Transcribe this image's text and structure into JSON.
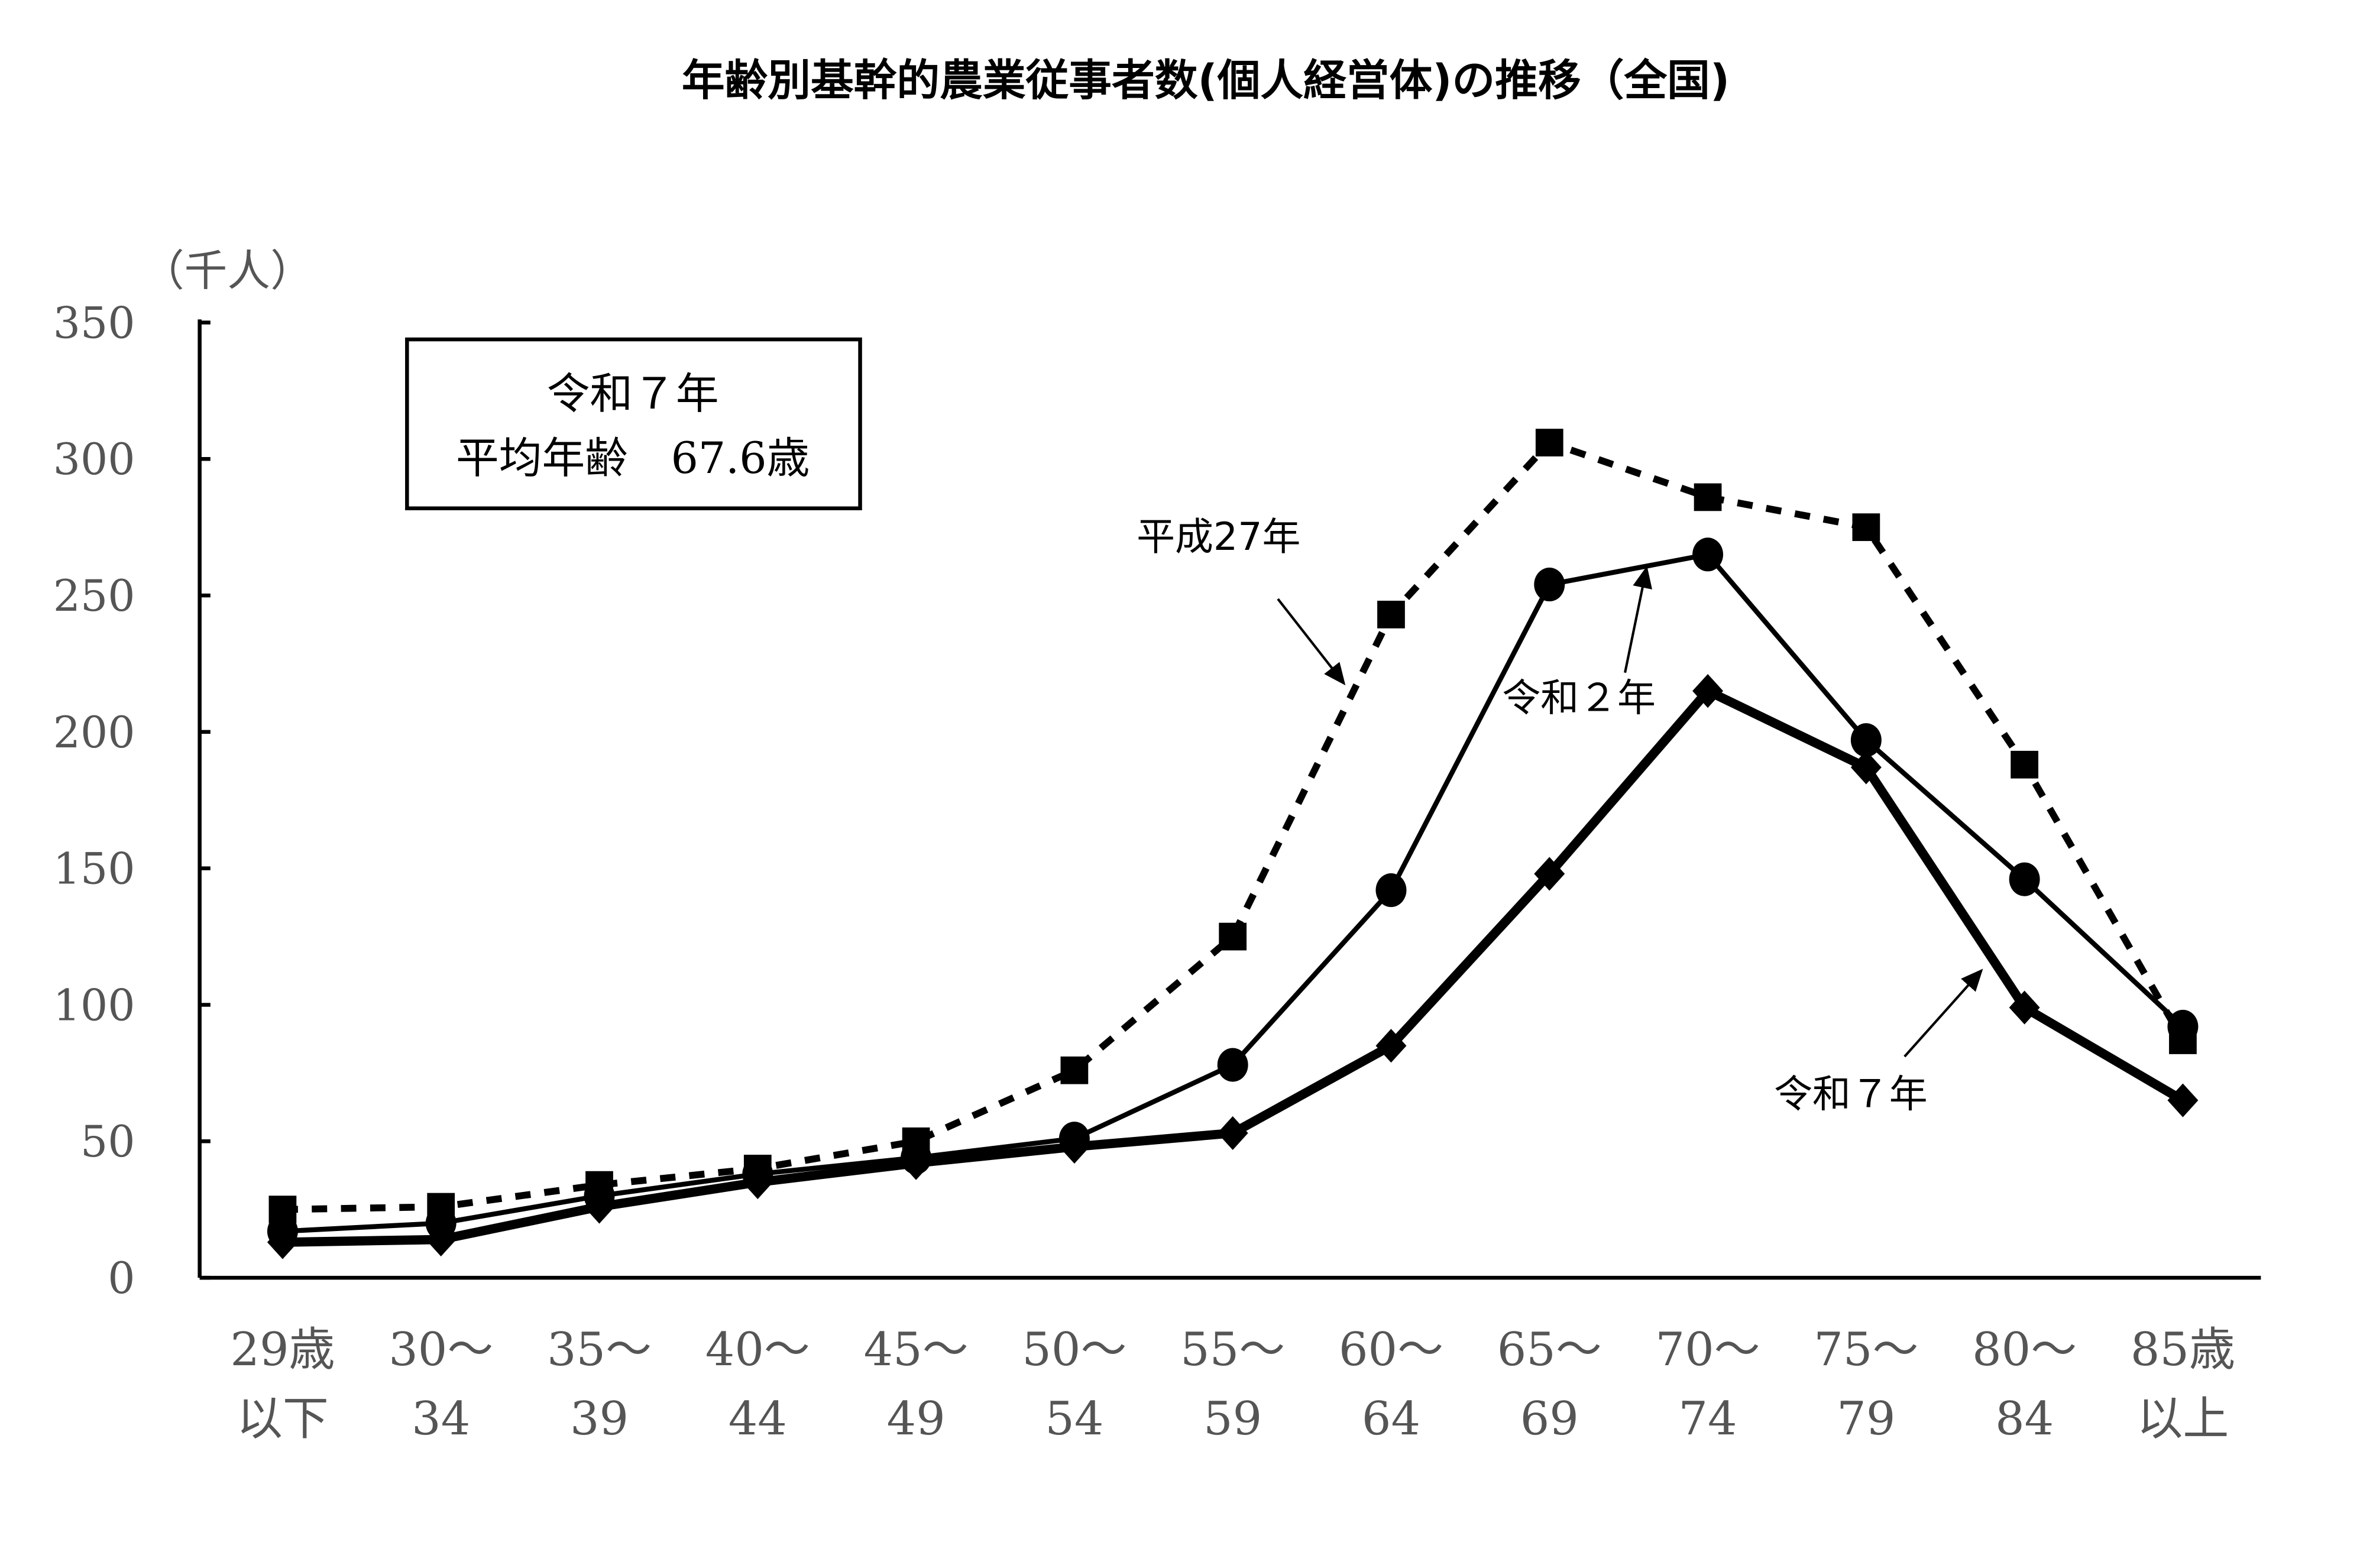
{
  "chart_data": {
    "type": "line",
    "title": "年齢別基幹的農業従事者数(個人経営体)の推移（全国)",
    "ylabel": "（千人）",
    "xlabel": "",
    "ylim": [
      0,
      350
    ],
    "yticks": [
      0,
      50,
      100,
      150,
      200,
      250,
      300,
      350
    ],
    "grid": false,
    "categories": [
      [
        "29歳",
        "以下"
      ],
      [
        "30～",
        "34"
      ],
      [
        "35～",
        "39"
      ],
      [
        "40～",
        "44"
      ],
      [
        "45～",
        "49"
      ],
      [
        "50～",
        "54"
      ],
      [
        "55～",
        "59"
      ],
      [
        "60～",
        "64"
      ],
      [
        "65～",
        "69"
      ],
      [
        "70～",
        "74"
      ],
      [
        "75～",
        "79"
      ],
      [
        "80～",
        "84"
      ],
      [
        "85歳",
        "以上"
      ]
    ],
    "series": [
      {
        "name": "平成27年",
        "style": "dashed",
        "marker": "square",
        "values": [
          25,
          26,
          34,
          40,
          50,
          76,
          125,
          243,
          306,
          286,
          275,
          188,
          87
        ]
      },
      {
        "name": "令和２年",
        "style": "solid",
        "marker": "circle",
        "values": [
          17,
          20,
          30,
          38,
          44,
          51,
          78,
          142,
          254,
          265,
          197,
          146,
          92
        ]
      },
      {
        "name": "令和７年",
        "style": "bold",
        "marker": "diamond",
        "values": [
          13,
          14,
          26,
          35,
          42,
          48,
          53,
          85,
          148,
          215,
          187,
          99,
          65
        ]
      }
    ],
    "annotation_box": {
      "line1": "令和７年",
      "line2": "平均年齢　67.6歳"
    },
    "colors": {
      "line": "#000000",
      "axis_text": "#555555"
    }
  }
}
